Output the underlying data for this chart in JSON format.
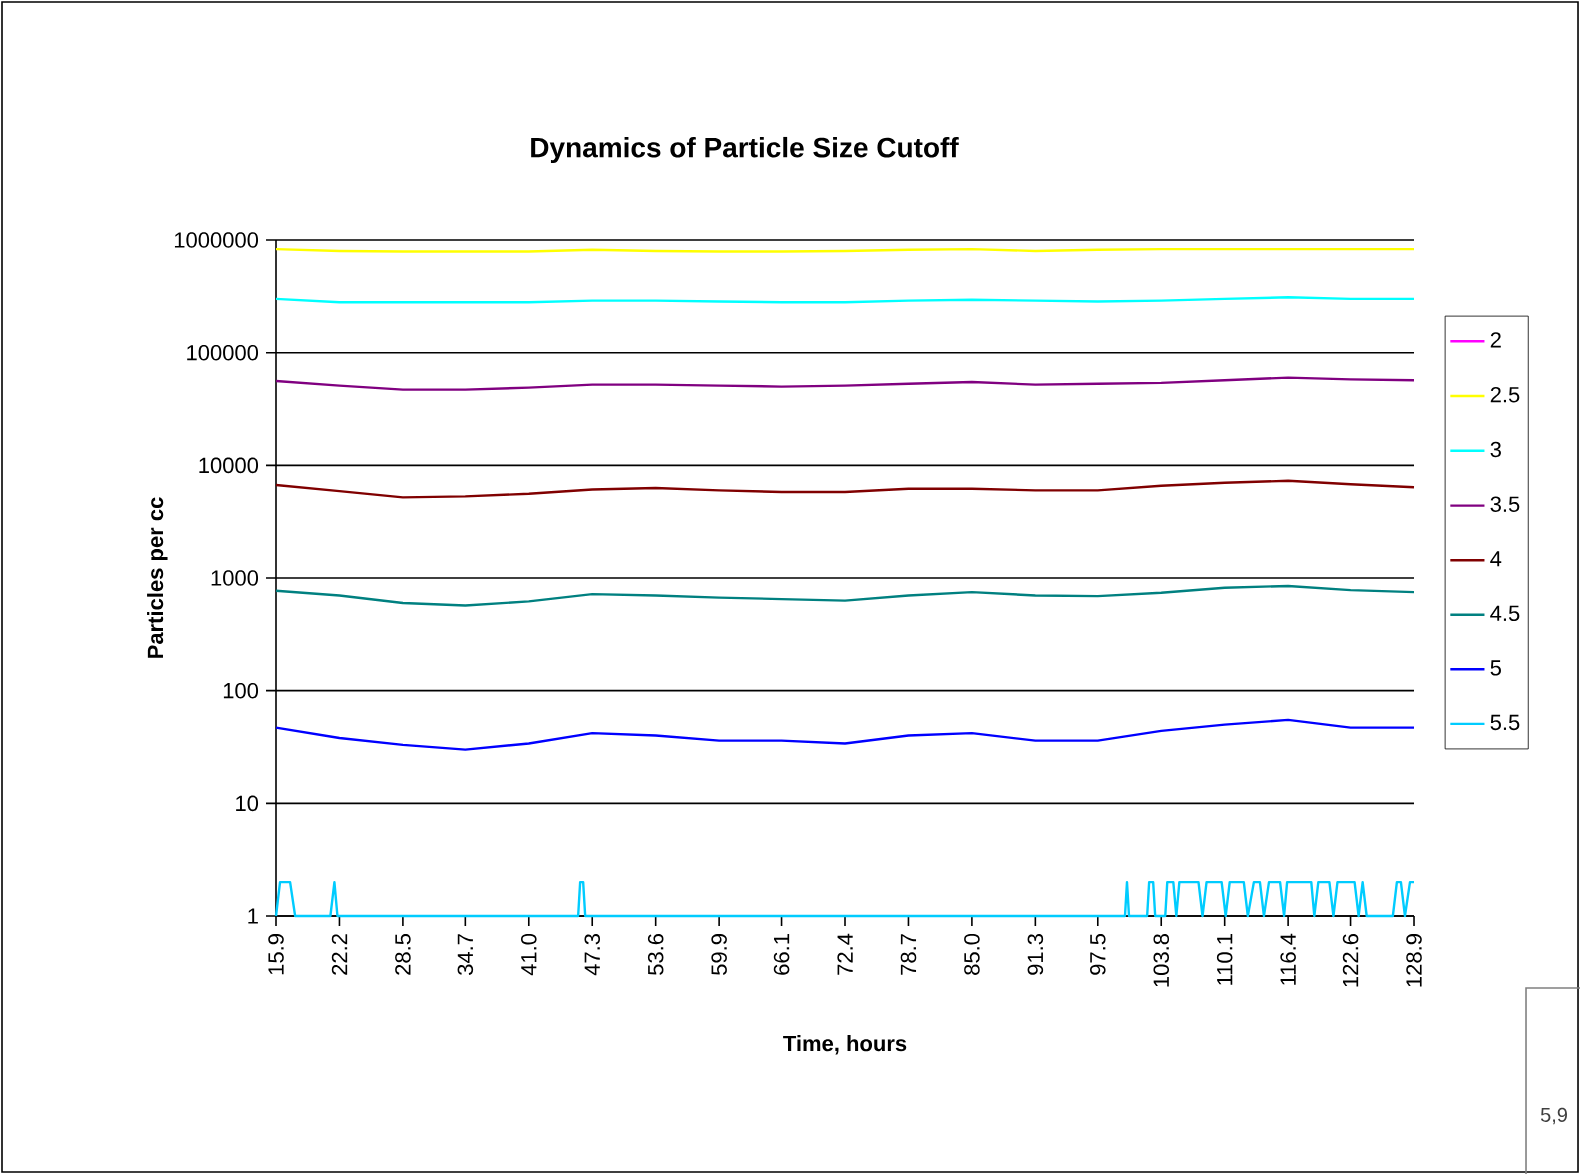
{
  "chart_data": {
    "type": "line",
    "title": "Dynamics of Particle Size Cutoff",
    "xlabel": "Time, hours",
    "ylabel": "Particles per cc",
    "x": [
      15.9,
      22.2,
      28.5,
      34.7,
      41.0,
      47.3,
      53.6,
      59.9,
      66.1,
      72.4,
      78.7,
      85.0,
      91.3,
      97.5,
      103.8,
      110.1,
      116.4,
      122.6,
      128.9
    ],
    "xlim": [
      15.9,
      128.9
    ],
    "xticks": [
      15.9,
      22.2,
      28.5,
      34.7,
      {
        "value": 41.0,
        "label": "41.0"
      },
      47.3,
      53.6,
      59.9,
      66.1,
      72.4,
      78.7,
      {
        "value": 85.0,
        "label": "85.0"
      },
      91.3,
      97.5,
      103.8,
      110.1,
      116.4,
      122.6,
      128.9
    ],
    "ylim": [
      1,
      1000000
    ],
    "yticks": [
      1,
      10,
      100,
      1000,
      10000,
      100000,
      1000000
    ],
    "log": "y",
    "grid": "y",
    "legend": "right",
    "marker": "none",
    "line_style": "solid",
    "series": [
      {
        "name": "2",
        "color": "#ff00ff",
        "values": [
          null,
          null,
          null,
          null,
          null,
          null,
          null,
          null,
          null,
          null,
          null,
          null,
          null,
          null,
          null,
          null,
          null,
          null,
          null
        ]
      },
      {
        "name": "2.5",
        "color": "#ffff00",
        "values": [
          830000,
          800000,
          790000,
          790000,
          790000,
          820000,
          800000,
          790000,
          790000,
          800000,
          820000,
          830000,
          800000,
          820000,
          830000,
          830000,
          830000,
          830000,
          830000
        ]
      },
      {
        "name": "3",
        "color": "#00ffff",
        "values": [
          300000,
          280000,
          280000,
          280000,
          280000,
          290000,
          290000,
          285000,
          280000,
          280000,
          290000,
          295000,
          290000,
          285000,
          290000,
          300000,
          310000,
          300000,
          300000
        ]
      },
      {
        "name": "3.5",
        "color": "#800080",
        "values": [
          56000,
          51000,
          47000,
          47000,
          49000,
          52000,
          52000,
          51000,
          50000,
          51000,
          53000,
          55000,
          52000,
          53000,
          54000,
          57000,
          60000,
          58000,
          57000
        ]
      },
      {
        "name": "4",
        "color": "#800000",
        "values": [
          6700,
          5900,
          5200,
          5300,
          5600,
          6100,
          6300,
          6000,
          5800,
          5800,
          6200,
          6200,
          6000,
          6000,
          6600,
          7000,
          7300,
          6800,
          6400
        ]
      },
      {
        "name": "4.5",
        "color": "#008080",
        "values": [
          770,
          700,
          600,
          570,
          620,
          720,
          700,
          670,
          650,
          630,
          700,
          750,
          700,
          690,
          740,
          820,
          850,
          780,
          750
        ]
      },
      {
        "name": "5",
        "color": "#0000ff",
        "values": [
          47,
          38,
          33,
          30,
          34,
          42,
          40,
          36,
          36,
          34,
          40,
          42,
          36,
          36,
          44,
          50,
          55,
          47,
          47
        ]
      },
      {
        "name": "5.5",
        "color": "#00ccff",
        "x": [
          15.9,
          16.3,
          17.3,
          17.8,
          21.3,
          21.7,
          22.0,
          45.9,
          46.1,
          46.4,
          46.6,
          100.2,
          100.4,
          100.6,
          102.4,
          102.6,
          103.0,
          103.2,
          104.2,
          104.4,
          105.0,
          105.3,
          105.6,
          107.5,
          107.9,
          108.3,
          109.8,
          110.2,
          110.6,
          112.0,
          112.4,
          113.0,
          113.6,
          114.0,
          114.5,
          115.6,
          116.0,
          116.3,
          118.7,
          119.0,
          119.4,
          120.5,
          120.9,
          121.3,
          123.0,
          123.4,
          123.8,
          124.2,
          126.8,
          127.2,
          127.6,
          128.0,
          128.5,
          128.9
        ],
        "values": [
          1,
          2,
          2,
          1,
          1,
          2,
          1,
          1,
          2,
          2,
          1,
          1,
          2,
          1,
          1,
          2,
          2,
          1,
          1,
          2,
          2,
          1,
          2,
          2,
          1,
          2,
          2,
          1,
          2,
          2,
          1,
          2,
          2,
          1,
          2,
          2,
          1,
          2,
          2,
          1,
          2,
          2,
          1,
          2,
          2,
          1,
          2,
          1,
          1,
          2,
          2,
          1,
          2,
          2
        ]
      }
    ],
    "annotations": [
      "5,9"
    ]
  }
}
